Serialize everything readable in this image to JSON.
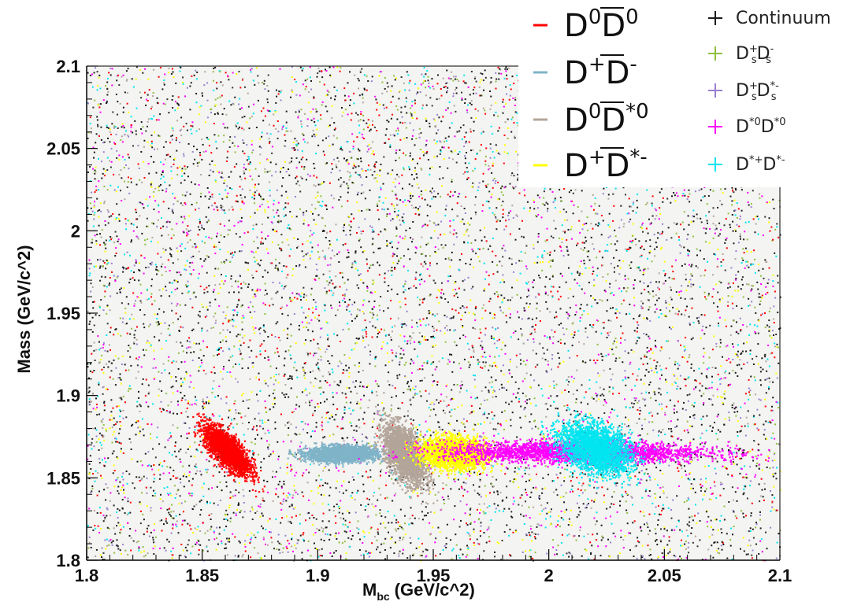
{
  "chart_data": {
    "type": "scatter",
    "xlabel": "M",
    "xlabel_sub": "bc",
    "xlabel_unit": "(GeV/c^2)",
    "ylabel": "Mass (GeV/c^2)",
    "xlim": [
      1.8,
      2.1
    ],
    "ylim": [
      1.8,
      2.1
    ],
    "xticks": [
      "1.8",
      "1.85",
      "1.9",
      "1.95",
      "2",
      "2.05",
      "2.1"
    ],
    "yticks": [
      "1.8",
      "1.85",
      "1.9",
      "1.95",
      "2",
      "2.05",
      "2.1"
    ],
    "grid": false,
    "legend_placement": "top-right",
    "series": [
      {
        "legend_main": "D",
        "legend_sup": "0",
        "legend_main2": "D",
        "legend_sup2": "0",
        "color": "#ff0000",
        "points": [
          [
            1.852,
            1.875
          ],
          [
            1.855,
            1.868
          ],
          [
            1.858,
            1.871
          ],
          [
            1.86,
            1.862
          ],
          [
            1.862,
            1.869
          ],
          [
            1.864,
            1.859
          ],
          [
            1.866,
            1.866
          ],
          [
            1.868,
            1.855
          ],
          [
            1.857,
            1.878
          ],
          [
            1.861,
            1.873
          ]
        ]
      },
      {
        "legend_main": "D",
        "legend_sup": "+",
        "legend_main2": "D",
        "legend_sup2": "-",
        "color": "#7fb3c8",
        "points": [
          [
            1.9,
            1.866
          ],
          [
            1.91,
            1.868
          ],
          [
            1.915,
            1.863
          ],
          [
            1.92,
            1.866
          ],
          [
            1.905,
            1.862
          ]
        ]
      },
      {
        "legend_main": "D",
        "legend_sup": "0",
        "legend_main2": "D",
        "legend_sup2": "*0",
        "color": "#b3a59a",
        "points": [
          [
            1.93,
            1.874
          ],
          [
            1.933,
            1.866
          ],
          [
            1.936,
            1.86
          ],
          [
            1.938,
            1.853
          ],
          [
            1.941,
            1.869
          ],
          [
            1.944,
            1.857
          ],
          [
            1.935,
            1.881
          ],
          [
            1.94,
            1.862
          ]
        ]
      },
      {
        "legend_main": "D",
        "legend_sup": "+",
        "legend_main2": "D",
        "legend_sup2": "*-",
        "color": "#ffff00",
        "points": [
          [
            1.95,
            1.866
          ],
          [
            1.955,
            1.87
          ],
          [
            1.96,
            1.861
          ],
          [
            1.965,
            1.866
          ],
          [
            1.97,
            1.863
          ],
          [
            1.952,
            1.86
          ],
          [
            1.958,
            1.873
          ]
        ]
      },
      {
        "legend_main": "Continuum",
        "legend_sup": "",
        "legend_main2": "",
        "legend_sup2": "",
        "color": "#1a1a1a",
        "points": [
          [
            1.81,
            2.09
          ],
          [
            1.85,
            1.95
          ],
          [
            1.9,
            2.02
          ],
          [
            1.95,
            1.83
          ],
          [
            2.0,
            2.06
          ],
          [
            2.05,
            1.92
          ],
          [
            2.08,
            1.81
          ]
        ]
      },
      {
        "legend_main": "D",
        "legend_sup": "+",
        "legend_main2": "D",
        "legend_sup2": "-",
        "sub1": "s",
        "sub2": "s",
        "color": "#8fbf3f",
        "points": [
          [
            1.82,
            1.81
          ],
          [
            1.9,
            1.83
          ],
          [
            2.0,
            1.82
          ]
        ]
      },
      {
        "legend_main": "D",
        "legend_sup": "+",
        "legend_main2": "D",
        "legend_sup2": "*-",
        "sub1": "s",
        "sub2": "s",
        "color": "#9a7fd1",
        "points": [
          [
            1.84,
            1.82
          ],
          [
            1.95,
            1.84
          ],
          [
            2.05,
            1.83
          ]
        ]
      },
      {
        "legend_main": "D",
        "legend_sup": "*0",
        "legend_main2": "D",
        "legend_sup2": "*0",
        "color": "#ff00ff",
        "points": [
          [
            1.975,
            1.866
          ],
          [
            1.985,
            1.87
          ],
          [
            1.995,
            1.862
          ],
          [
            2.0,
            1.867
          ],
          [
            2.035,
            1.866
          ],
          [
            2.042,
            1.862
          ],
          [
            2.045,
            1.87
          ]
        ]
      },
      {
        "legend_main": "D",
        "legend_sup": "*+",
        "legend_main2": "D",
        "legend_sup2": "*-",
        "color": "#00e5f0",
        "points": [
          [
            2.01,
            1.866
          ],
          [
            2.015,
            1.872
          ],
          [
            2.02,
            1.86
          ],
          [
            2.025,
            1.869
          ],
          [
            2.03,
            1.857
          ],
          [
            2.012,
            1.878
          ],
          [
            2.028,
            1.875
          ]
        ]
      }
    ]
  }
}
